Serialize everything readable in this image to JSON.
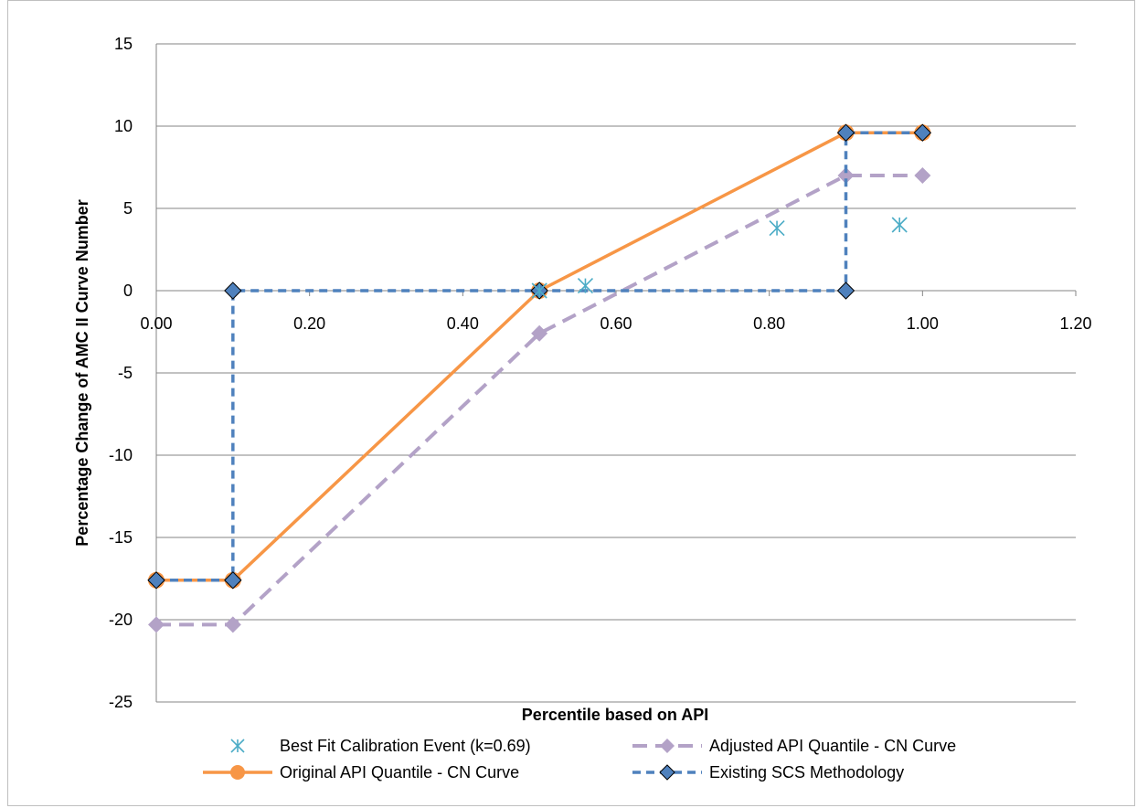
{
  "chart_data": {
    "type": "line",
    "title": "",
    "xlabel": "Percentile based on API",
    "ylabel": "Percentage Change of AMC II Curve Number",
    "xlim": [
      0,
      1.2
    ],
    "ylim": [
      -25,
      15
    ],
    "x_ticks": [
      "0.00",
      "0.20",
      "0.40",
      "0.60",
      "0.80",
      "1.00",
      "1.20"
    ],
    "y_ticks": [
      "15",
      "10",
      "5",
      "0",
      "-5",
      "-10",
      "-15",
      "-20",
      "-25"
    ],
    "grid": "horizontal",
    "legend_position": "bottom",
    "series": [
      {
        "name": "Best Fit Calibration Event (k=0.69)",
        "style": "markers-asterisk",
        "color": "#4bacc6",
        "x": [
          0.5,
          0.56,
          0.81,
          0.97
        ],
        "y": [
          0.0,
          0.3,
          3.8,
          4.0
        ]
      },
      {
        "name": "Adjusted API Quantile - CN Curve",
        "style": "dashed-diamond",
        "color": "#b3a2c7",
        "x": [
          0.0,
          0.1,
          0.5,
          0.9,
          1.0
        ],
        "y": [
          -20.3,
          -20.3,
          -2.6,
          7.0,
          7.0
        ]
      },
      {
        "name": "Original API Quantile - CN Curve",
        "style": "solid-circle",
        "color": "#f79646",
        "x": [
          0.0,
          0.1,
          0.5,
          0.9,
          1.0
        ],
        "y": [
          -17.6,
          -17.6,
          0.0,
          9.6,
          9.6
        ]
      },
      {
        "name": "Existing SCS Methodology",
        "style": "dashed-diamond",
        "color": "#4f81bd",
        "x": [
          0.0,
          0.1,
          0.1,
          0.5,
          0.9,
          0.9,
          1.0
        ],
        "y": [
          -17.6,
          -17.6,
          0.0,
          0.0,
          0.0,
          9.6,
          9.6
        ]
      }
    ]
  }
}
